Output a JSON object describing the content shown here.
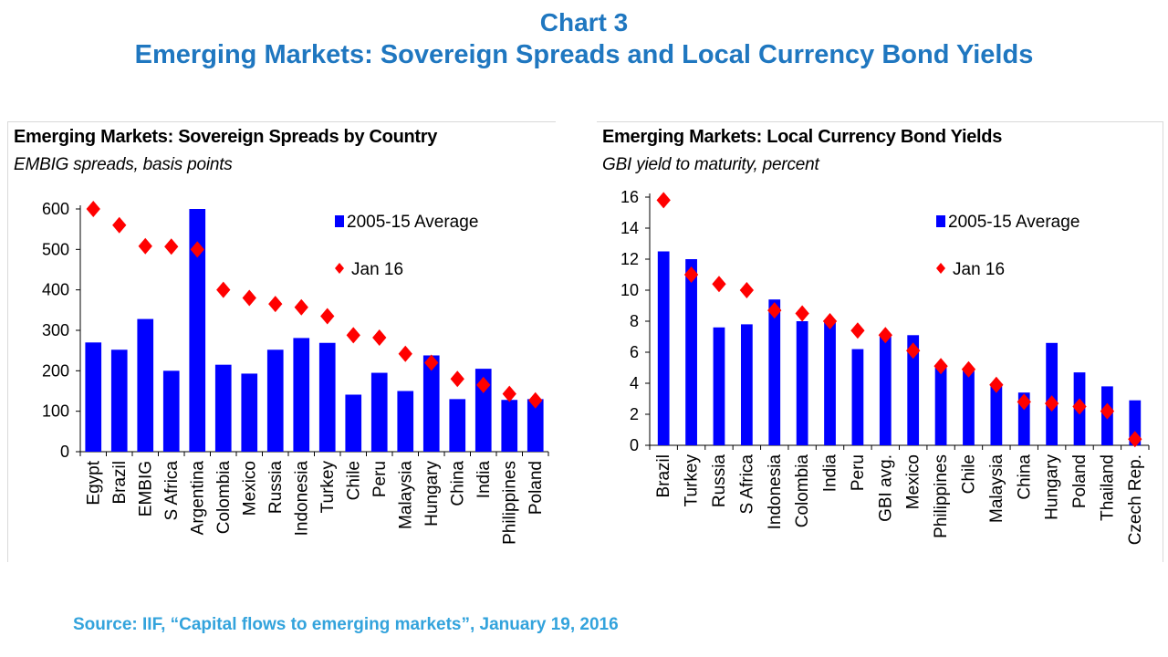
{
  "header": {
    "title_line1": "Chart 3",
    "title_line2": "Emerging Markets: Sovereign Spreads and Local Currency Bond Yields"
  },
  "source": "Source: IIF, “Capital flows to emerging markets”, January 19, 2016",
  "colors": {
    "bar": "#0000ff",
    "marker": "#ff0000",
    "title": "#1f77c0",
    "source": "#33a3dc"
  },
  "chart_data": [
    {
      "type": "bar",
      "title": "Emerging Markets:  Sovereign Spreads by Country",
      "subtitle": "EMBIG spreads, basis points",
      "ylim": [
        0,
        600
      ],
      "yticks": [
        0,
        100,
        200,
        300,
        400,
        500,
        600
      ],
      "legend_position": "top-right",
      "categories": [
        "Egypt",
        "Brazil",
        "EMBIG",
        "S Africa",
        "Argentina",
        "Colombia",
        "Mexico",
        "Russia",
        "Indonesia",
        "Turkey",
        "Chile",
        "Peru",
        "Malaysia",
        "Hungary",
        "China",
        "India",
        "Philippines",
        "Poland"
      ],
      "series": [
        {
          "name": "2005-15 Average",
          "kind": "bar",
          "values": [
            270,
            252,
            328,
            200,
            600,
            215,
            193,
            252,
            281,
            269,
            141,
            195,
            150,
            238,
            130,
            205,
            128,
            130
          ]
        },
        {
          "name": "Jan 16",
          "kind": "marker",
          "values": [
            600,
            560,
            508,
            507,
            500,
            400,
            380,
            365,
            357,
            335,
            288,
            282,
            242,
            220,
            180,
            165,
            143,
            127
          ]
        }
      ]
    },
    {
      "type": "bar",
      "title": "Emerging Markets: Local Currency Bond Yields",
      "subtitle": "GBI yield to maturity, percent",
      "ylim": [
        0,
        16
      ],
      "yticks": [
        0,
        2,
        4,
        6,
        8,
        10,
        12,
        14,
        16
      ],
      "legend_position": "top-right",
      "categories": [
        "Brazil",
        "Turkey",
        "Russia",
        "S Africa",
        "Indonesia",
        "Colombia",
        "India",
        "Peru",
        "GBI avg.",
        "Mexico",
        "Philippines",
        "Chile",
        "Malaysia",
        "China",
        "Hungary",
        "Poland",
        "Thailand",
        "Czech Rep."
      ],
      "series": [
        {
          "name": "2005-15 Average",
          "kind": "bar",
          "values": [
            12.5,
            12.0,
            7.6,
            7.8,
            9.4,
            8.0,
            8.0,
            6.2,
            7.0,
            7.1,
            5.0,
            4.8,
            4.0,
            3.4,
            6.6,
            4.7,
            3.8,
            2.9
          ]
        },
        {
          "name": "Jan 16",
          "kind": "marker",
          "values": [
            15.8,
            11.0,
            10.4,
            10.0,
            8.7,
            8.5,
            8.0,
            7.4,
            7.1,
            6.1,
            5.1,
            4.9,
            3.9,
            2.8,
            2.7,
            2.5,
            2.2,
            0.4
          ]
        }
      ]
    }
  ]
}
